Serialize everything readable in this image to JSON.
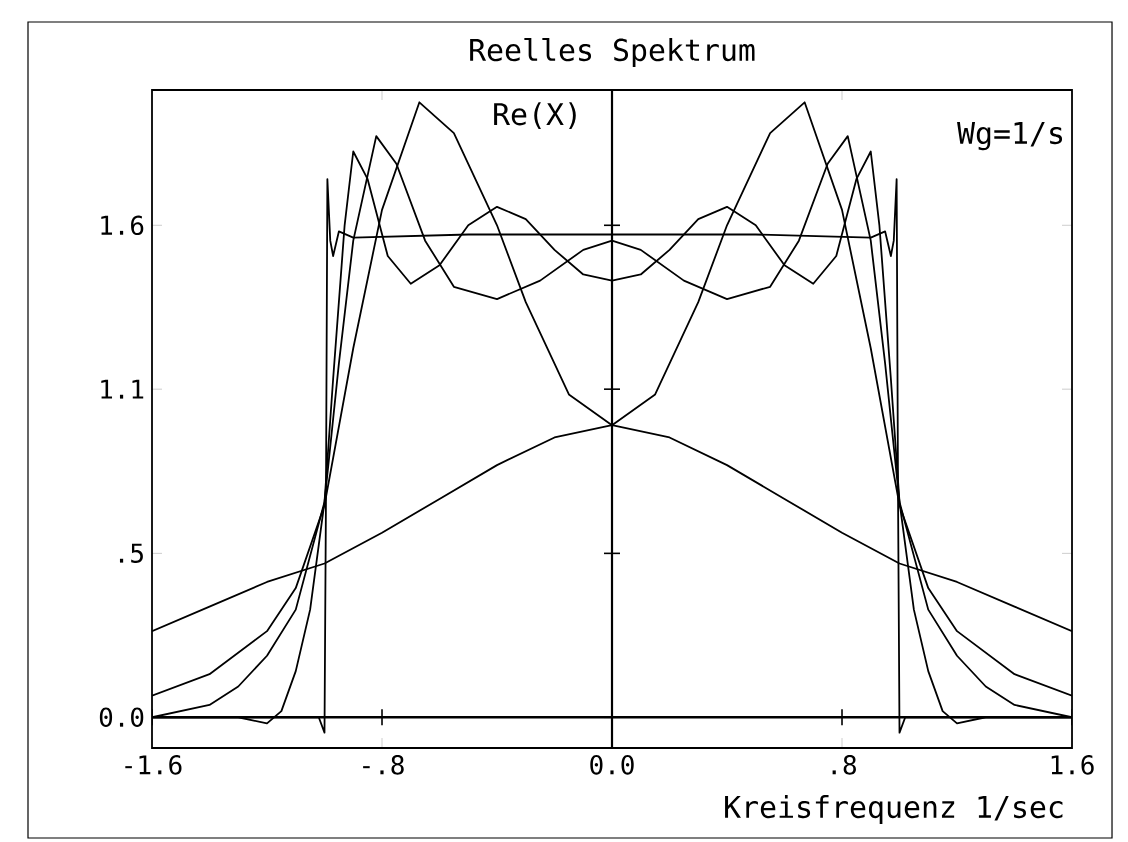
{
  "chart_data": {
    "type": "line",
    "title": "Reelles Spektrum",
    "xlabel": "Kreisfrequenz 1/sec",
    "annotations": [
      "Re(X)",
      "Wg=1/s"
    ],
    "xlim": [
      -1.6,
      1.6
    ],
    "ylim": [
      -0.1,
      2.04
    ],
    "xticks": [
      -1.6,
      {
        "value": -0.8,
        "label": "-.8"
      },
      {
        "value": 0,
        "label": "0.0"
      },
      {
        "value": 0.8,
        "label": ".8"
      },
      1.6
    ],
    "yticks": [
      {
        "value": 0,
        "label": "0.0"
      },
      {
        "value": 0.533,
        "label": ".5"
      },
      {
        "value": 1.067,
        "label": "1.1"
      },
      1.6
    ],
    "ref_lines": [
      {
        "axis": "x",
        "value": 0,
        "color": "#000000"
      }
    ],
    "series": [
      {
        "color": "#000000",
        "x": [
          -1.6,
          -1.4,
          -1.2,
          -1.0,
          -0.8,
          -0.6,
          -0.4,
          -0.2,
          0,
          0.2,
          0.4,
          0.6,
          0.8,
          1.0,
          1.2,
          1.4,
          1.6
        ],
        "values": [
          0.28,
          0.36,
          0.44,
          0.5,
          0.6,
          0.71,
          0.82,
          0.91,
          0.95,
          0.91,
          0.82,
          0.71,
          0.6,
          0.5,
          0.44,
          0.36,
          0.28
        ]
      },
      {
        "color": "#000000",
        "x": [
          -1.6,
          -1.4,
          -1.2,
          -1.1,
          -1.0,
          -0.9,
          -0.8,
          -0.67,
          -0.55,
          -0.4,
          -0.3,
          -0.15,
          0,
          0.15,
          0.3,
          0.4,
          0.55,
          0.67,
          0.8,
          0.9,
          1.0,
          1.1,
          1.2,
          1.4,
          1.6
        ],
        "values": [
          0.07,
          0.14,
          0.28,
          0.42,
          0.69,
          1.2,
          1.65,
          2.0,
          1.9,
          1.6,
          1.35,
          1.05,
          0.95,
          1.05,
          1.35,
          1.6,
          1.9,
          2.0,
          1.65,
          1.2,
          0.69,
          0.42,
          0.28,
          0.14,
          0.07
        ]
      },
      {
        "color": "#000000",
        "x": [
          -1.6,
          -1.4,
          -1.3,
          -1.2,
          -1.1,
          -1.0,
          -0.95,
          -0.9,
          -0.82,
          -0.75,
          -0.65,
          -0.55,
          -0.4,
          -0.25,
          -0.1,
          0,
          0.1,
          0.25,
          0.4,
          0.55,
          0.65,
          0.75,
          0.82,
          0.9,
          0.95,
          1.0,
          1.1,
          1.2,
          1.3,
          1.4,
          1.6
        ],
        "values": [
          0.0,
          0.04,
          0.1,
          0.2,
          0.35,
          0.7,
          1.15,
          1.55,
          1.89,
          1.8,
          1.55,
          1.4,
          1.36,
          1.42,
          1.52,
          1.55,
          1.52,
          1.42,
          1.36,
          1.4,
          1.55,
          1.8,
          1.89,
          1.55,
          1.15,
          0.7,
          0.35,
          0.2,
          0.1,
          0.04,
          0.0
        ]
      },
      {
        "color": "#000000",
        "x": [
          -1.6,
          -1.3,
          -1.2,
          -1.15,
          -1.1,
          -1.05,
          -1.0,
          -0.97,
          -0.93,
          -0.9,
          -0.85,
          -0.78,
          -0.7,
          -0.6,
          -0.5,
          -0.4,
          -0.3,
          -0.2,
          -0.1,
          0,
          0.1,
          0.2,
          0.3,
          0.4,
          0.5,
          0.6,
          0.7,
          0.78,
          0.85,
          0.9,
          0.93,
          0.97,
          1.0,
          1.05,
          1.1,
          1.15,
          1.2,
          1.3,
          1.6
        ],
        "values": [
          0,
          0,
          -0.02,
          0.02,
          0.15,
          0.35,
          0.7,
          1.1,
          1.6,
          1.84,
          1.75,
          1.5,
          1.41,
          1.47,
          1.6,
          1.66,
          1.62,
          1.52,
          1.44,
          1.42,
          1.44,
          1.52,
          1.62,
          1.66,
          1.6,
          1.47,
          1.41,
          1.5,
          1.75,
          1.84,
          1.6,
          1.1,
          0.7,
          0.35,
          0.15,
          0.02,
          -0.02,
          0,
          0
        ]
      },
      {
        "color": "#000000",
        "x": [
          -1.6,
          -1.02,
          -1.0,
          -0.995,
          -0.99,
          -0.98,
          -0.97,
          -0.95,
          -0.9,
          -0.5,
          0,
          0.5,
          0.9,
          0.95,
          0.97,
          0.98,
          0.99,
          0.995,
          1.0,
          1.02,
          1.6
        ],
        "values": [
          0,
          0,
          -0.05,
          0.7,
          1.75,
          1.55,
          1.5,
          1.58,
          1.56,
          1.57,
          1.57,
          1.57,
          1.56,
          1.58,
          1.5,
          1.55,
          1.75,
          0.7,
          -0.05,
          0,
          0
        ]
      }
    ]
  }
}
